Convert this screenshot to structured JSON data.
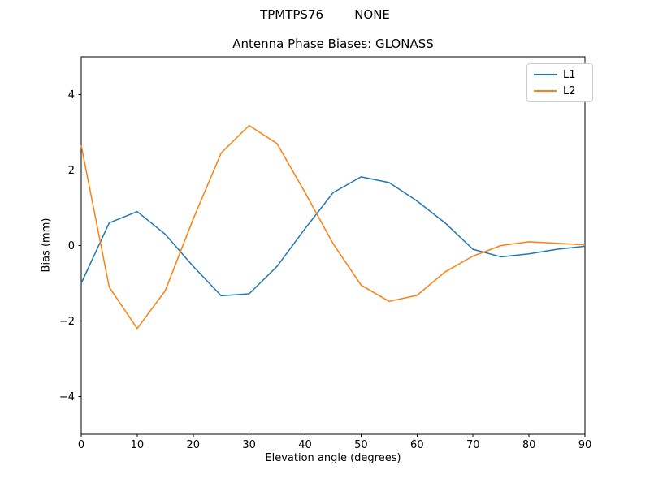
{
  "suptitle": "TPMTPS76        NONE",
  "chart_data": {
    "type": "line",
    "title": "Antenna Phase Biases: GLONASS",
    "xlabel": "Elevation angle (degrees)",
    "ylabel": "Bias (mm)",
    "xlim": [
      0,
      90
    ],
    "ylim": [
      -5,
      5
    ],
    "xticks": [
      0,
      10,
      20,
      30,
      40,
      50,
      60,
      70,
      80,
      90
    ],
    "xticklabels": [
      "0",
      "10",
      "20",
      "30",
      "40",
      "50",
      "60",
      "70",
      "80",
      "90"
    ],
    "yticks": [
      -4,
      -2,
      0,
      2,
      4
    ],
    "yticklabels": [
      "−4",
      "−2",
      "0",
      "2",
      "4"
    ],
    "grid": false,
    "legend_position": "upper right",
    "x": [
      0,
      5,
      10,
      15,
      20,
      25,
      30,
      35,
      40,
      45,
      50,
      55,
      60,
      65,
      70,
      75,
      80,
      85,
      90
    ],
    "series": [
      {
        "name": "L1",
        "color": "#1f77b4",
        "values": [
          -1.0,
          0.6,
          0.9,
          0.3,
          -0.55,
          -1.33,
          -1.28,
          -0.55,
          0.45,
          1.4,
          1.82,
          1.67,
          1.18,
          0.6,
          -0.1,
          -0.3,
          -0.22,
          -0.1,
          -0.02
        ]
      },
      {
        "name": "L2",
        "color": "#ff7f0e",
        "values": [
          2.65,
          -1.1,
          -2.2,
          -1.2,
          0.7,
          2.45,
          3.18,
          2.7,
          1.4,
          0.05,
          -1.05,
          -1.48,
          -1.32,
          -0.7,
          -0.28,
          0.0,
          0.1,
          0.06,
          0.02
        ]
      }
    ]
  }
}
